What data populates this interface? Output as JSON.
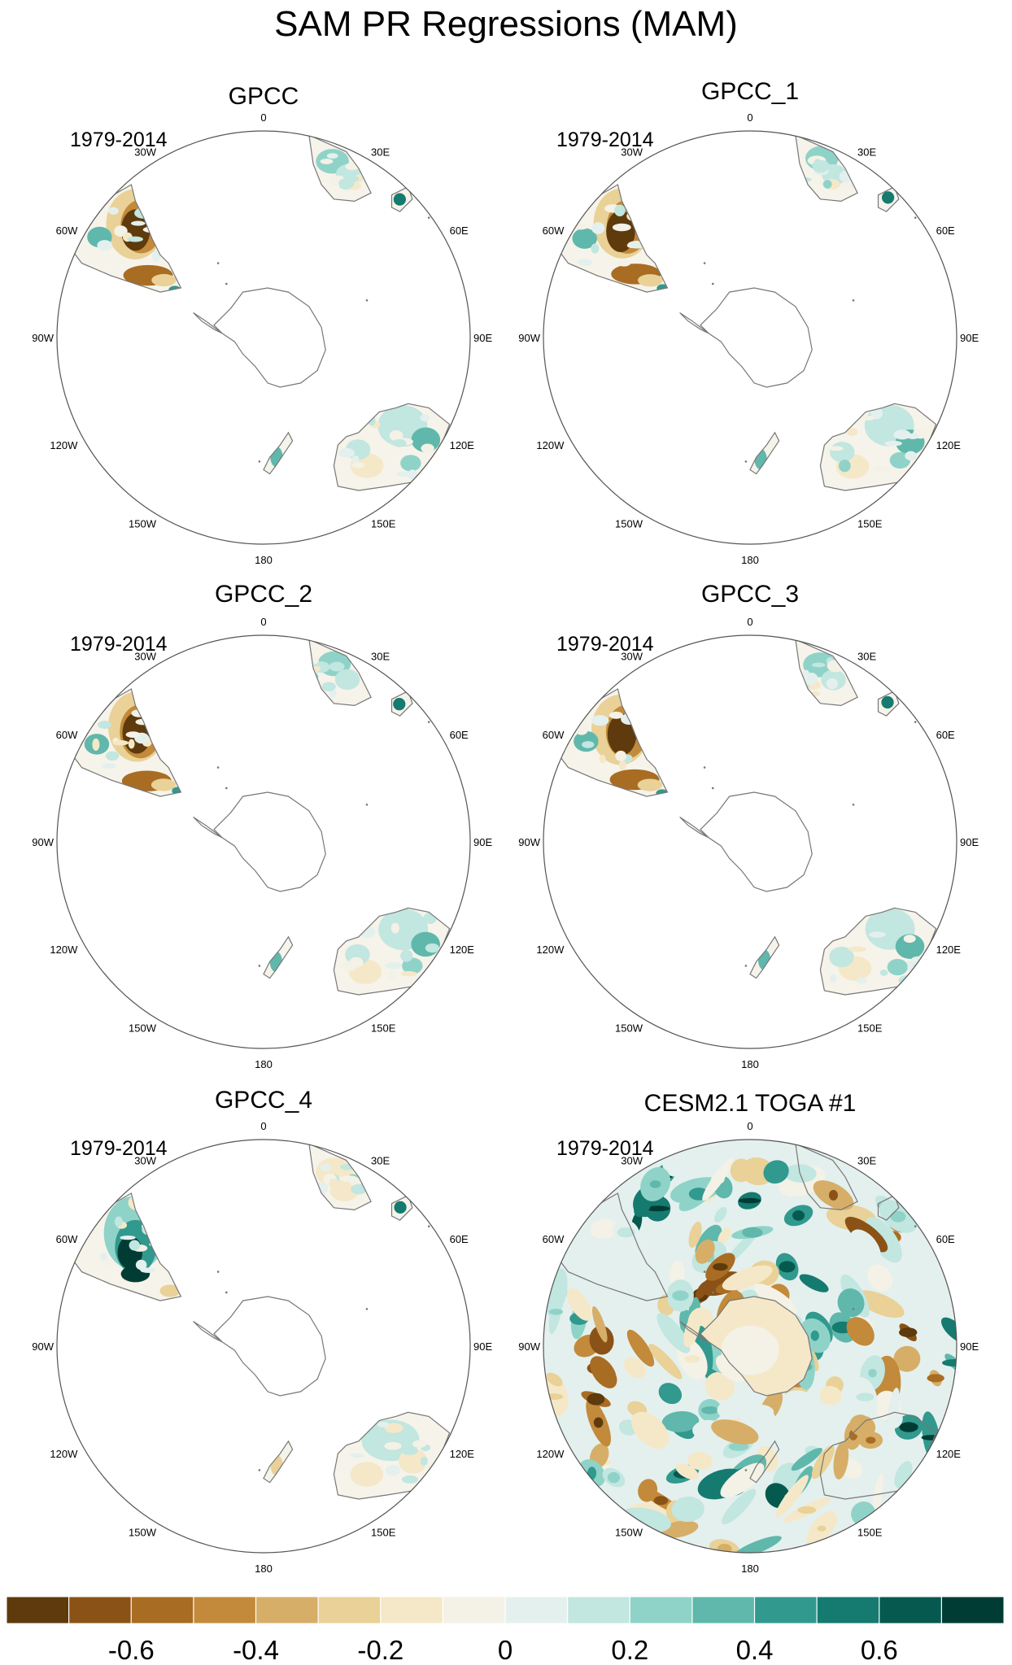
{
  "figure": {
    "title": "SAM PR Regressions (MAM)"
  },
  "panels": [
    {
      "id": "gpcc",
      "title": "GPCC",
      "years": "1979-2014",
      "pattern": "obs"
    },
    {
      "id": "gpcc1",
      "title": "GPCC_1",
      "years": "1979-2014",
      "pattern": "obs"
    },
    {
      "id": "gpcc2",
      "title": "GPCC_2",
      "years": "1979-2014",
      "pattern": "obs"
    },
    {
      "id": "gpcc3",
      "title": "GPCC_3",
      "years": "1979-2014",
      "pattern": "obs"
    },
    {
      "id": "gpcc4",
      "title": "GPCC_4",
      "years": "1979-2014",
      "pattern": "obs_alt"
    },
    {
      "id": "cesm",
      "title": "CESM2.1 TOGA #1",
      "years": "1979-2014",
      "pattern": "model"
    }
  ],
  "longitude_labels": [
    "0",
    "30E",
    "60E",
    "90E",
    "120E",
    "150E",
    "180",
    "150W",
    "120W",
    "90W",
    "60W",
    "30W"
  ],
  "colorbar": {
    "colors": [
      "#5e3a0c",
      "#8a5216",
      "#a96c23",
      "#c28a3a",
      "#d6ae68",
      "#e9d197",
      "#f5e8c8",
      "#f4f1e6",
      "#e4f0ee",
      "#c2e6e0",
      "#8fd3c8",
      "#5fb8ab",
      "#31998d",
      "#157a6f",
      "#06594e",
      "#003c33"
    ],
    "tick_labels": [
      "-0.6",
      "-0.4",
      "-0.2",
      "0",
      "0.2",
      "0.4",
      "0.6"
    ]
  },
  "colors": {
    "coast": "#777777",
    "circle": "#555555"
  }
}
